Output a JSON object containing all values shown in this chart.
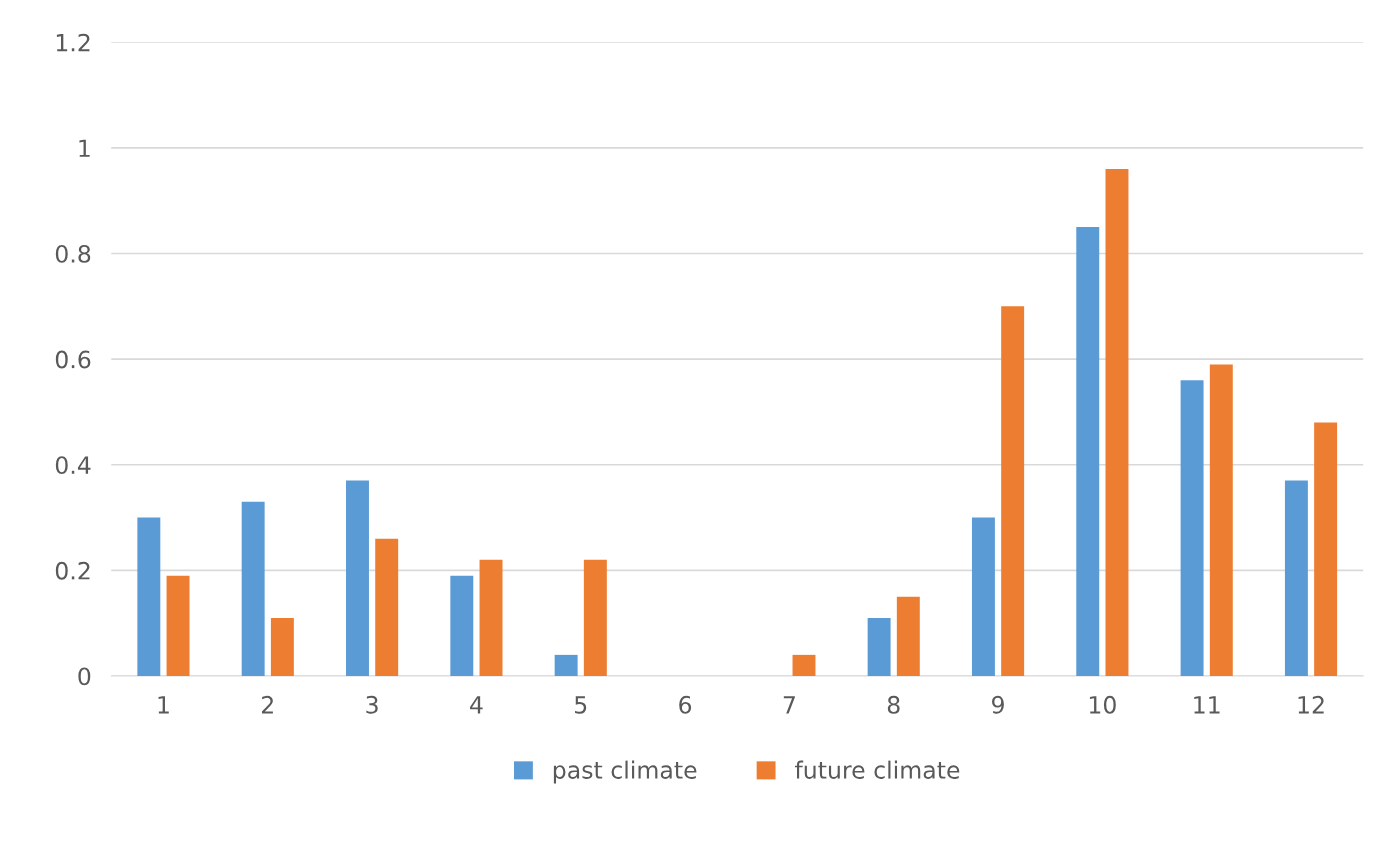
{
  "chart_data": {
    "type": "bar",
    "categories": [
      "1",
      "2",
      "3",
      "4",
      "5",
      "6",
      "7",
      "8",
      "9",
      "10",
      "11",
      "12"
    ],
    "series": [
      {
        "name": "past climate",
        "color": "#5b9bd5",
        "values": [
          0.3,
          0.33,
          0.37,
          0.19,
          0.04,
          0,
          0,
          0.11,
          0.3,
          0.85,
          0.56,
          0.37
        ]
      },
      {
        "name": "future climate",
        "color": "#ed7d31",
        "values": [
          0.19,
          0.11,
          0.26,
          0.22,
          0.22,
          0,
          0.04,
          0.15,
          0.7,
          0.96,
          0.59,
          0.48
        ]
      }
    ],
    "ylim": [
      0,
      1.2
    ],
    "yticks": [
      0,
      {
        "value": 0.2,
        "label": "0.2"
      },
      {
        "value": 0.4,
        "label": "0.4"
      },
      {
        "value": 0.6,
        "label": "0.6"
      },
      {
        "value": 0.8,
        "label": "0.8"
      },
      1,
      {
        "value": 1.2,
        "label": "1.2"
      }
    ],
    "grid": "y",
    "legend": "bottom"
  }
}
